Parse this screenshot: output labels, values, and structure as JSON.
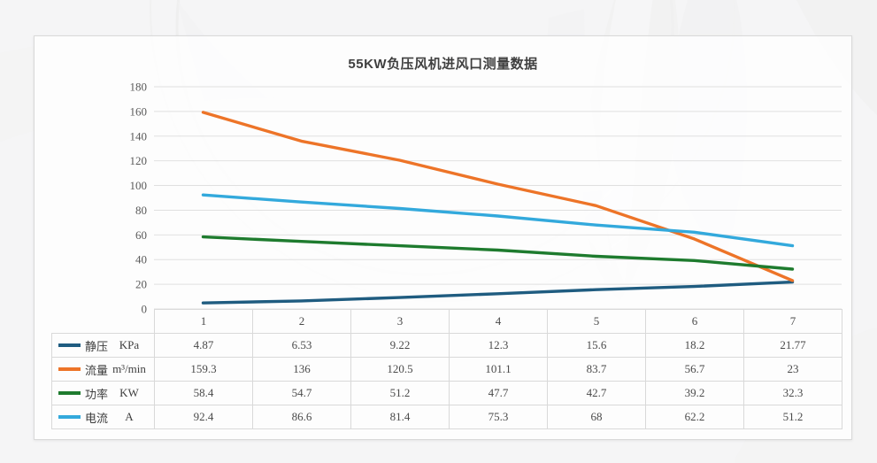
{
  "page": {
    "background_color": "#f5f5f6",
    "card_border_color": "#d9d9d9"
  },
  "chart_data": {
    "type": "line",
    "title": "55KW负压风机进风口测量数据",
    "categories": [
      "1",
      "2",
      "3",
      "4",
      "5",
      "6",
      "7"
    ],
    "y_axis": {
      "min": 0,
      "max": 180,
      "step": 20,
      "ticks": [
        180,
        160,
        140,
        120,
        100,
        80,
        60,
        40,
        20,
        0
      ]
    },
    "grid": true,
    "legend_position": "table-left-column",
    "colors": {
      "grid": "#e0e0e0",
      "table_border": "#d9d9d9",
      "axis_text": "#595959",
      "title_text": "#3f3f3f"
    },
    "series": [
      {
        "id": "static-pressure",
        "name": "静压",
        "unit": "KPa",
        "color": "#1F5C80",
        "values": [
          4.87,
          6.53,
          9.22,
          12.3,
          15.6,
          18.2,
          21.77
        ]
      },
      {
        "id": "flow-rate",
        "name": "流量",
        "unit": "m³/min",
        "color": "#ED7428",
        "values": [
          159.3,
          136,
          120.5,
          101.1,
          83.7,
          56.7,
          23
        ]
      },
      {
        "id": "power",
        "name": "功率",
        "unit": "KW",
        "color": "#1E7B2E",
        "values": [
          58.4,
          54.7,
          51.2,
          47.7,
          42.7,
          39.2,
          32.3
        ]
      },
      {
        "id": "current",
        "name": "电流",
        "unit": "A",
        "color": "#33A9DC",
        "values": [
          92.4,
          86.6,
          81.4,
          75.3,
          68,
          62.2,
          51.2
        ]
      }
    ]
  }
}
